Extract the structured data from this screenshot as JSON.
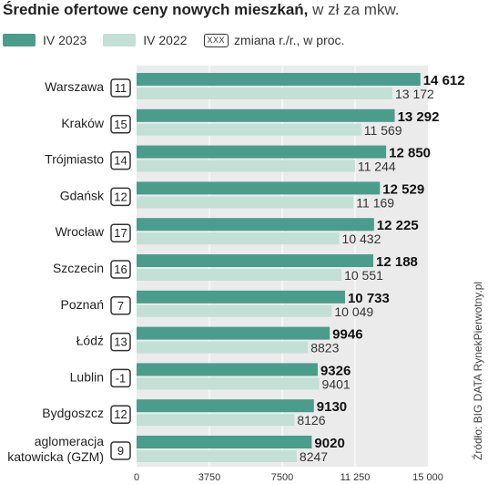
{
  "title_bold": "Średnie ofertowe ceny nowych mieszkań,",
  "title_rest": " w zł za mkw.",
  "legend": {
    "series1": "IV 2023",
    "series2": "IV 2022",
    "box_text": "XXX",
    "change_label": "zmiana r./r., w proc."
  },
  "source": "Źródło: BIG DATA RynekPierwotny.pl",
  "colors": {
    "series1": "#4a9d8a",
    "series2": "#c2e0d6",
    "plot_bg": "#ebebeb"
  },
  "chart_data": {
    "type": "bar",
    "orientation": "horizontal",
    "categories": [
      "Warszawa",
      "Kraków",
      "Trójmiasto",
      "Gdańsk",
      "Wrocław",
      "Szczecin",
      "Poznań",
      "Łódź",
      "Lublin",
      "Bydgoszcz",
      "aglomeracja\nkatowicka (GZM)"
    ],
    "change_pct": [
      "11",
      "15",
      "14",
      "12",
      "17",
      "16",
      "7",
      "13",
      "-1",
      "12",
      "9"
    ],
    "series": [
      {
        "name": "IV 2023",
        "values": [
          14612,
          13292,
          12850,
          12529,
          12225,
          12188,
          10733,
          9946,
          9326,
          9130,
          9020
        ],
        "labels": [
          "14 612",
          "13 292",
          "12 850",
          "12 529",
          "12 225",
          "12 188",
          "10 733",
          "9946",
          "9326",
          "9130",
          "9020"
        ]
      },
      {
        "name": "IV 2022",
        "values": [
          13172,
          11569,
          11244,
          11169,
          10432,
          10551,
          10049,
          8823,
          9401,
          8126,
          8247
        ],
        "labels": [
          "13 172",
          "11 569",
          "11 244",
          "11 169",
          "10 432",
          "10 551",
          "10 049",
          "8823",
          "9401",
          "8126",
          "8247"
        ]
      }
    ],
    "xlim": [
      0,
      15000
    ],
    "xticks": [
      0,
      3750,
      7500,
      11250,
      15000
    ],
    "xtick_labels": [
      "0",
      "3750",
      "7500",
      "11 250",
      "15 000"
    ],
    "grid": true
  }
}
